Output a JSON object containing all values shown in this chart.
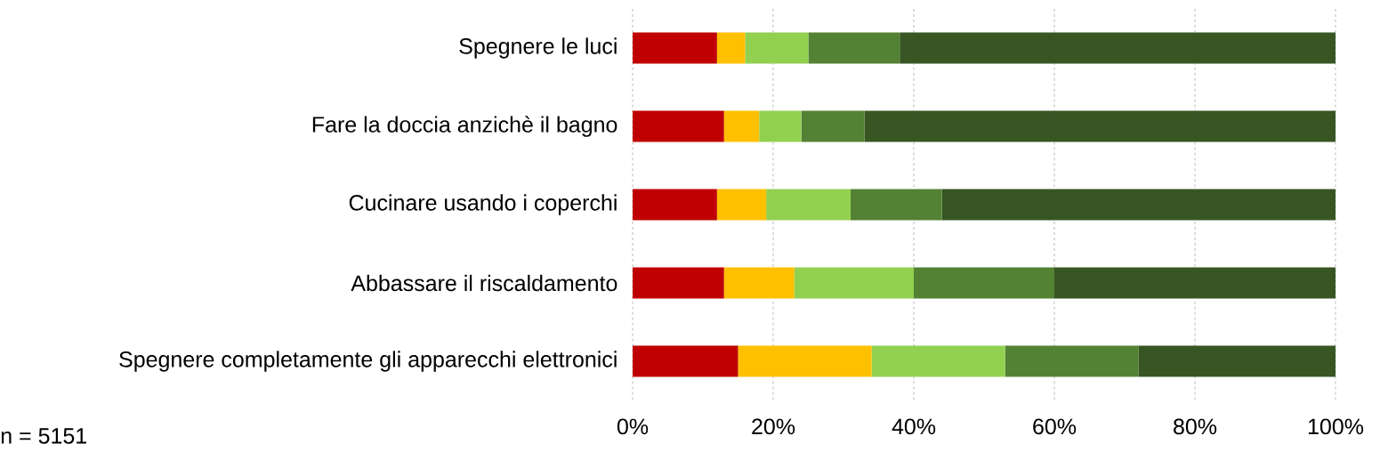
{
  "chart_data": {
    "type": "bar",
    "orientation": "horizontal",
    "stacked": true,
    "categories": [
      "Spegnere le luci",
      "Fare la doccia anzichè il bagno",
      "Cucinare usando i coperchi",
      "Abbassare il riscaldamento",
      "Spegnere completamente gli apparecchi elettronici"
    ],
    "series": [
      {
        "color": "#c00000",
        "values": [
          12,
          13,
          12,
          13,
          15
        ]
      },
      {
        "color": "#ffc000",
        "values": [
          4,
          5,
          7,
          10,
          19
        ]
      },
      {
        "color": "#92d050",
        "values": [
          9,
          6,
          12,
          17,
          19
        ]
      },
      {
        "color": "#548235",
        "values": [
          13,
          9,
          13,
          20,
          19
        ]
      },
      {
        "color": "#375623",
        "values": [
          62,
          67,
          56,
          40,
          28
        ]
      }
    ],
    "xlim": [
      0,
      100
    ],
    "xticks": [
      {
        "value": 0,
        "label": "0%"
      },
      {
        "value": 20,
        "label": "20%"
      },
      {
        "value": 40,
        "label": "40%"
      },
      {
        "value": 60,
        "label": "60%"
      },
      {
        "value": 80,
        "label": "80%"
      },
      {
        "value": 100,
        "label": "100%"
      }
    ],
    "grid": "x",
    "annotations": [
      "n = 5151"
    ]
  }
}
